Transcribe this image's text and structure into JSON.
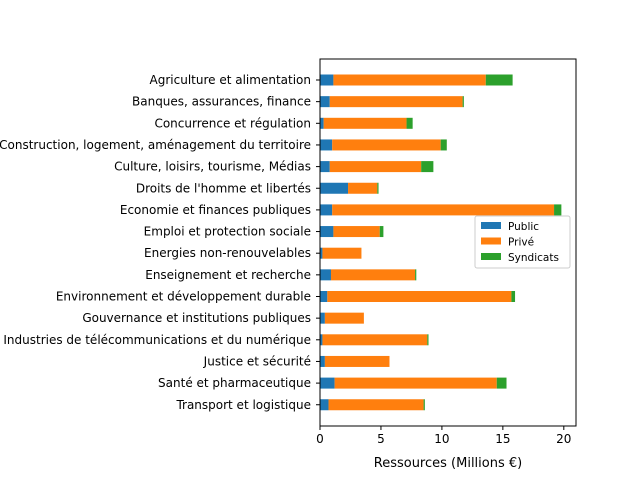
{
  "chart_data": {
    "type": "bar",
    "orientation": "horizontal",
    "stacked": true,
    "title": "",
    "xlabel": "Ressources (Millions €)",
    "ylabel": "",
    "xlim": [
      0,
      21
    ],
    "xticks": [
      0,
      5,
      10,
      15,
      20
    ],
    "grid": false,
    "legend_position": "center-right",
    "categories": [
      "Agriculture et alimentation",
      "Banques, assurances, finance",
      "Concurrence et régulation",
      "Construction, logement, aménagement du territoire",
      "Culture, loisirs, tourisme, Médias",
      "Droits de l'homme et libertés",
      "Economie et finances publiques",
      "Emploi et protection sociale",
      "Energies non-renouvelables",
      "Enseignement et recherche",
      "Environnement et développement durable",
      "Gouvernance et institutions publiques",
      "Industries de télécommunications et du numérique",
      "Justice et sécurité",
      "Santé et pharmaceutique",
      "Transport et logistique"
    ],
    "series": [
      {
        "name": "Public",
        "color": "#1f77b4",
        "values": [
          1.1,
          0.8,
          0.3,
          1.0,
          0.8,
          2.3,
          1.0,
          1.1,
          0.2,
          0.9,
          0.6,
          0.4,
          0.2,
          0.4,
          1.2,
          0.7
        ]
      },
      {
        "name": "Privé",
        "color": "#ff7f0e",
        "values": [
          12.5,
          10.9,
          6.8,
          8.9,
          7.5,
          2.4,
          18.2,
          3.8,
          3.2,
          6.9,
          15.1,
          3.2,
          8.6,
          5.3,
          13.3,
          7.8
        ]
      },
      {
        "name": "Syndicats",
        "color": "#2ca02c",
        "values": [
          2.2,
          0.1,
          0.5,
          0.5,
          1.0,
          0.1,
          0.6,
          0.3,
          0.0,
          0.1,
          0.3,
          0.0,
          0.1,
          0.0,
          0.8,
          0.1
        ]
      }
    ]
  }
}
